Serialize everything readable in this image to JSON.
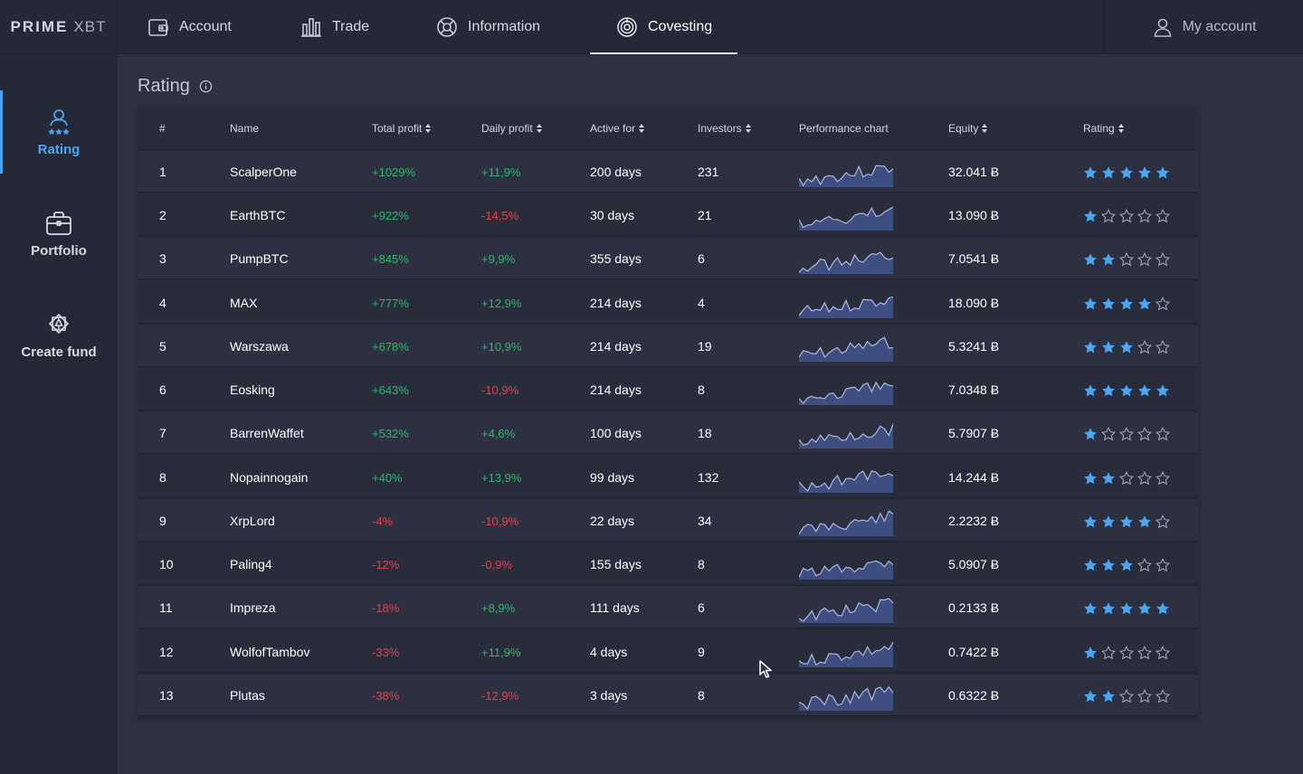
{
  "header": {
    "logo_main": "PRIME",
    "logo_sub": "XBT",
    "tabs": [
      {
        "label": "Account",
        "icon": "wallet-icon"
      },
      {
        "label": "Trade",
        "icon": "bar-chart-icon"
      },
      {
        "label": "Information",
        "icon": "lifebuoy-icon"
      },
      {
        "label": "Covesting",
        "icon": "covesting-icon"
      }
    ],
    "active_tab": "Covesting",
    "my_account": "My account"
  },
  "sidebar": {
    "items": [
      {
        "label": "Rating",
        "icon": "rating-icon"
      },
      {
        "label": "Portfolio",
        "icon": "briefcase-icon"
      },
      {
        "label": "Create fund",
        "icon": "create-fund-icon"
      }
    ],
    "active_item": "Rating"
  },
  "page": {
    "title": "Rating"
  },
  "table": {
    "columns": [
      "#",
      "Name",
      "Total profit",
      "Daily profit",
      "Active for",
      "Investors",
      "Performance chart",
      "Equity",
      "Rating"
    ],
    "rows": [
      {
        "rank": "1",
        "name": "ScalperOne",
        "total_profit": "+1029%",
        "daily_profit": "+11,9%",
        "active_for": "200 days",
        "investors": "231",
        "equity": "32.041 Ƀ",
        "rating": 5
      },
      {
        "rank": "2",
        "name": "EarthBTC",
        "total_profit": "+922%",
        "daily_profit": "-14,5%",
        "active_for": "30 days",
        "investors": "21",
        "equity": "13.090 Ƀ",
        "rating": 1
      },
      {
        "rank": "3",
        "name": "PumpBTC",
        "total_profit": "+845%",
        "daily_profit": "+9,9%",
        "active_for": "355 days",
        "investors": "6",
        "equity": "7.0541 Ƀ",
        "rating": 2
      },
      {
        "rank": "4",
        "name": "MAX",
        "total_profit": "+777%",
        "daily_profit": "+12,9%",
        "active_for": "214 days",
        "investors": "4",
        "equity": "18.090 Ƀ",
        "rating": 4
      },
      {
        "rank": "5",
        "name": "Warszawa",
        "total_profit": "+678%",
        "daily_profit": "+10,9%",
        "active_for": "214 days",
        "investors": "19",
        "equity": "5.3241 Ƀ",
        "rating": 3
      },
      {
        "rank": "6",
        "name": "Eosking",
        "total_profit": "+643%",
        "daily_profit": "-10,9%",
        "active_for": "214 days",
        "investors": "8",
        "equity": "7.0348 Ƀ",
        "rating": 5
      },
      {
        "rank": "7",
        "name": "BarrenWaffet",
        "total_profit": "+532%",
        "daily_profit": "+4,6%",
        "active_for": "100 days",
        "investors": "18",
        "equity": "5.7907 Ƀ",
        "rating": 1
      },
      {
        "rank": "8",
        "name": "Nopainnogain",
        "total_profit": "+40%",
        "daily_profit": "+13,9%",
        "active_for": "99 days",
        "investors": "132",
        "equity": "14.244 Ƀ",
        "rating": 2
      },
      {
        "rank": "9",
        "name": "XrpLord",
        "total_profit": "-4%",
        "daily_profit": "-10,9%",
        "active_for": "22 days",
        "investors": "34",
        "equity": "2.2232 Ƀ",
        "rating": 4
      },
      {
        "rank": "10",
        "name": "Paling4",
        "total_profit": "-12%",
        "daily_profit": "-0,9%",
        "active_for": "155 days",
        "investors": "8",
        "equity": "5.0907 Ƀ",
        "rating": 3
      },
      {
        "rank": "11",
        "name": "Impreza",
        "total_profit": "-18%",
        "daily_profit": "+8,9%",
        "active_for": "111 days",
        "investors": "6",
        "equity": "0.2133 Ƀ",
        "rating": 5
      },
      {
        "rank": "12",
        "name": "WolfofTambov",
        "total_profit": "-33%",
        "daily_profit": "+11,9%",
        "active_for": "4 days",
        "investors": "9",
        "equity": "0.7422 Ƀ",
        "rating": 1
      },
      {
        "rank": "13",
        "name": "Plutas",
        "total_profit": "-38%",
        "daily_profit": "-12,9%",
        "active_for": "3 days",
        "investors": "8",
        "equity": "0.6322 Ƀ",
        "rating": 2
      }
    ]
  },
  "colors": {
    "accent": "#49a6f5",
    "positive": "#2eb86b",
    "negative": "#e0424a",
    "chart_fill": "#3f4e80",
    "chart_line": "#aeb9dd"
  }
}
